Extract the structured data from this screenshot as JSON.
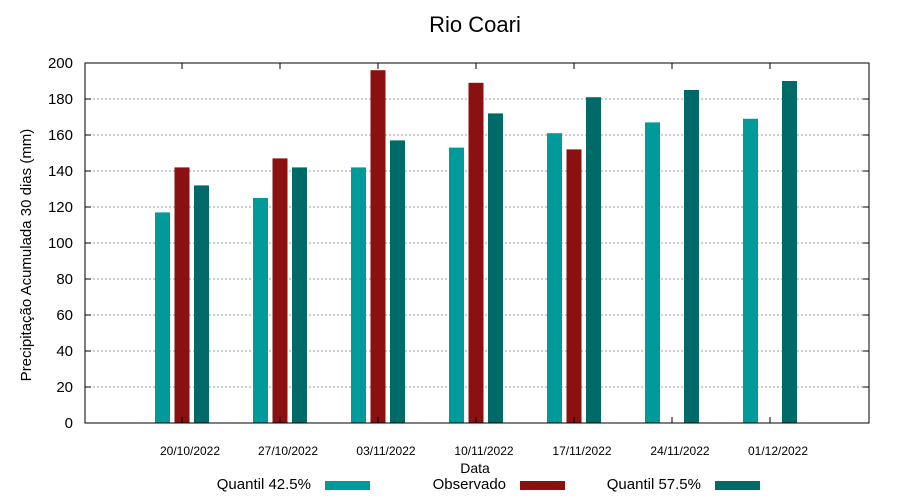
{
  "chart_data": {
    "type": "bar",
    "title": "Rio Coari",
    "xlabel": "Data",
    "ylabel": "Precipitação Acumulada 30 dias (mm)",
    "ylim": [
      0,
      200
    ],
    "yticks": [
      0,
      20,
      40,
      60,
      80,
      100,
      120,
      140,
      160,
      180,
      200
    ],
    "grid": true,
    "legend_position": "bottom",
    "categories": [
      "20/10/2022",
      "27/10/2022",
      "03/11/2022",
      "10/11/2022",
      "17/11/2022",
      "24/11/2022",
      "01/12/2022"
    ],
    "series": [
      {
        "name": "Quantil 42.5%",
        "color": "#009a9a",
        "values": [
          117,
          125,
          142,
          153,
          161,
          167,
          169
        ]
      },
      {
        "name": "Observado",
        "color": "#8b1010",
        "values": [
          142,
          147,
          196,
          189,
          152,
          null,
          null
        ]
      },
      {
        "name": "Quantil 57.5%",
        "color": "#006a68",
        "values": [
          132,
          142,
          157,
          172,
          181,
          185,
          190
        ]
      }
    ]
  }
}
